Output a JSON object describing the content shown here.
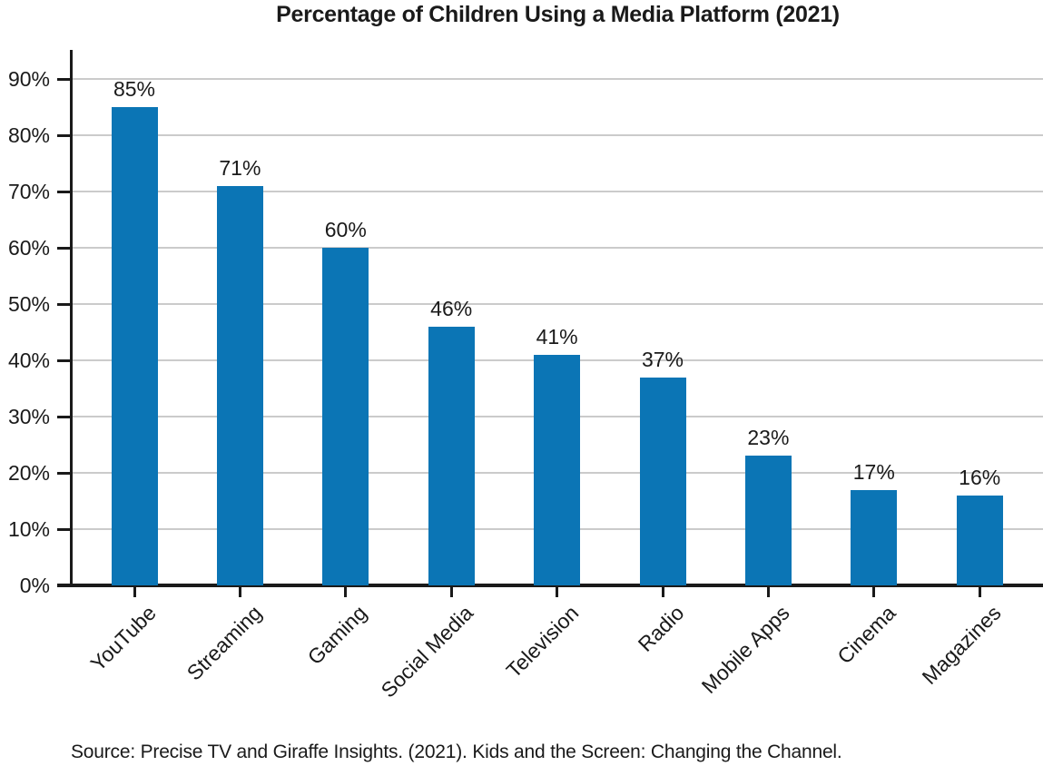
{
  "page": {
    "background": "#ffffff"
  },
  "header": {
    "title": "Percentage of Children Using a Media Platform (2021)"
  },
  "footer": {
    "source": "Source: Precise TV and Giraffe Insights. (2021). Kids and the Screen: Changing the Channel."
  },
  "colors": {
    "bar": "#0b75b5",
    "grid": "#cbcbcb",
    "axis": "#1a1a1a",
    "text": "#1a1a1a"
  },
  "chart_data": {
    "type": "bar",
    "title": "Percentage of Children Using a Media Platform (2021)",
    "categories": [
      "YouTube",
      "Streaming",
      "Gaming",
      "Social Media",
      "Television",
      "Radio",
      "Mobile Apps",
      "Cinema",
      "Magazines"
    ],
    "values": [
      85,
      71,
      60,
      46,
      41,
      37,
      23,
      17,
      16
    ],
    "value_labels": [
      "85%",
      "71%",
      "60%",
      "46%",
      "41%",
      "37%",
      "23%",
      "17%",
      "16%"
    ],
    "xlabel": "",
    "ylabel": "",
    "ylim": [
      0,
      95
    ],
    "yticks": [
      "0%",
      "10%",
      "20%",
      "30%",
      "40%",
      "50%",
      "60%",
      "70%",
      "80%",
      "90%"
    ],
    "grid": "horizontal",
    "legend": "none",
    "bar_color": "#0b75b5",
    "source": "Source: Precise TV and Giraffe Insights. (2021). Kids and the Screen: Changing the Channel."
  }
}
